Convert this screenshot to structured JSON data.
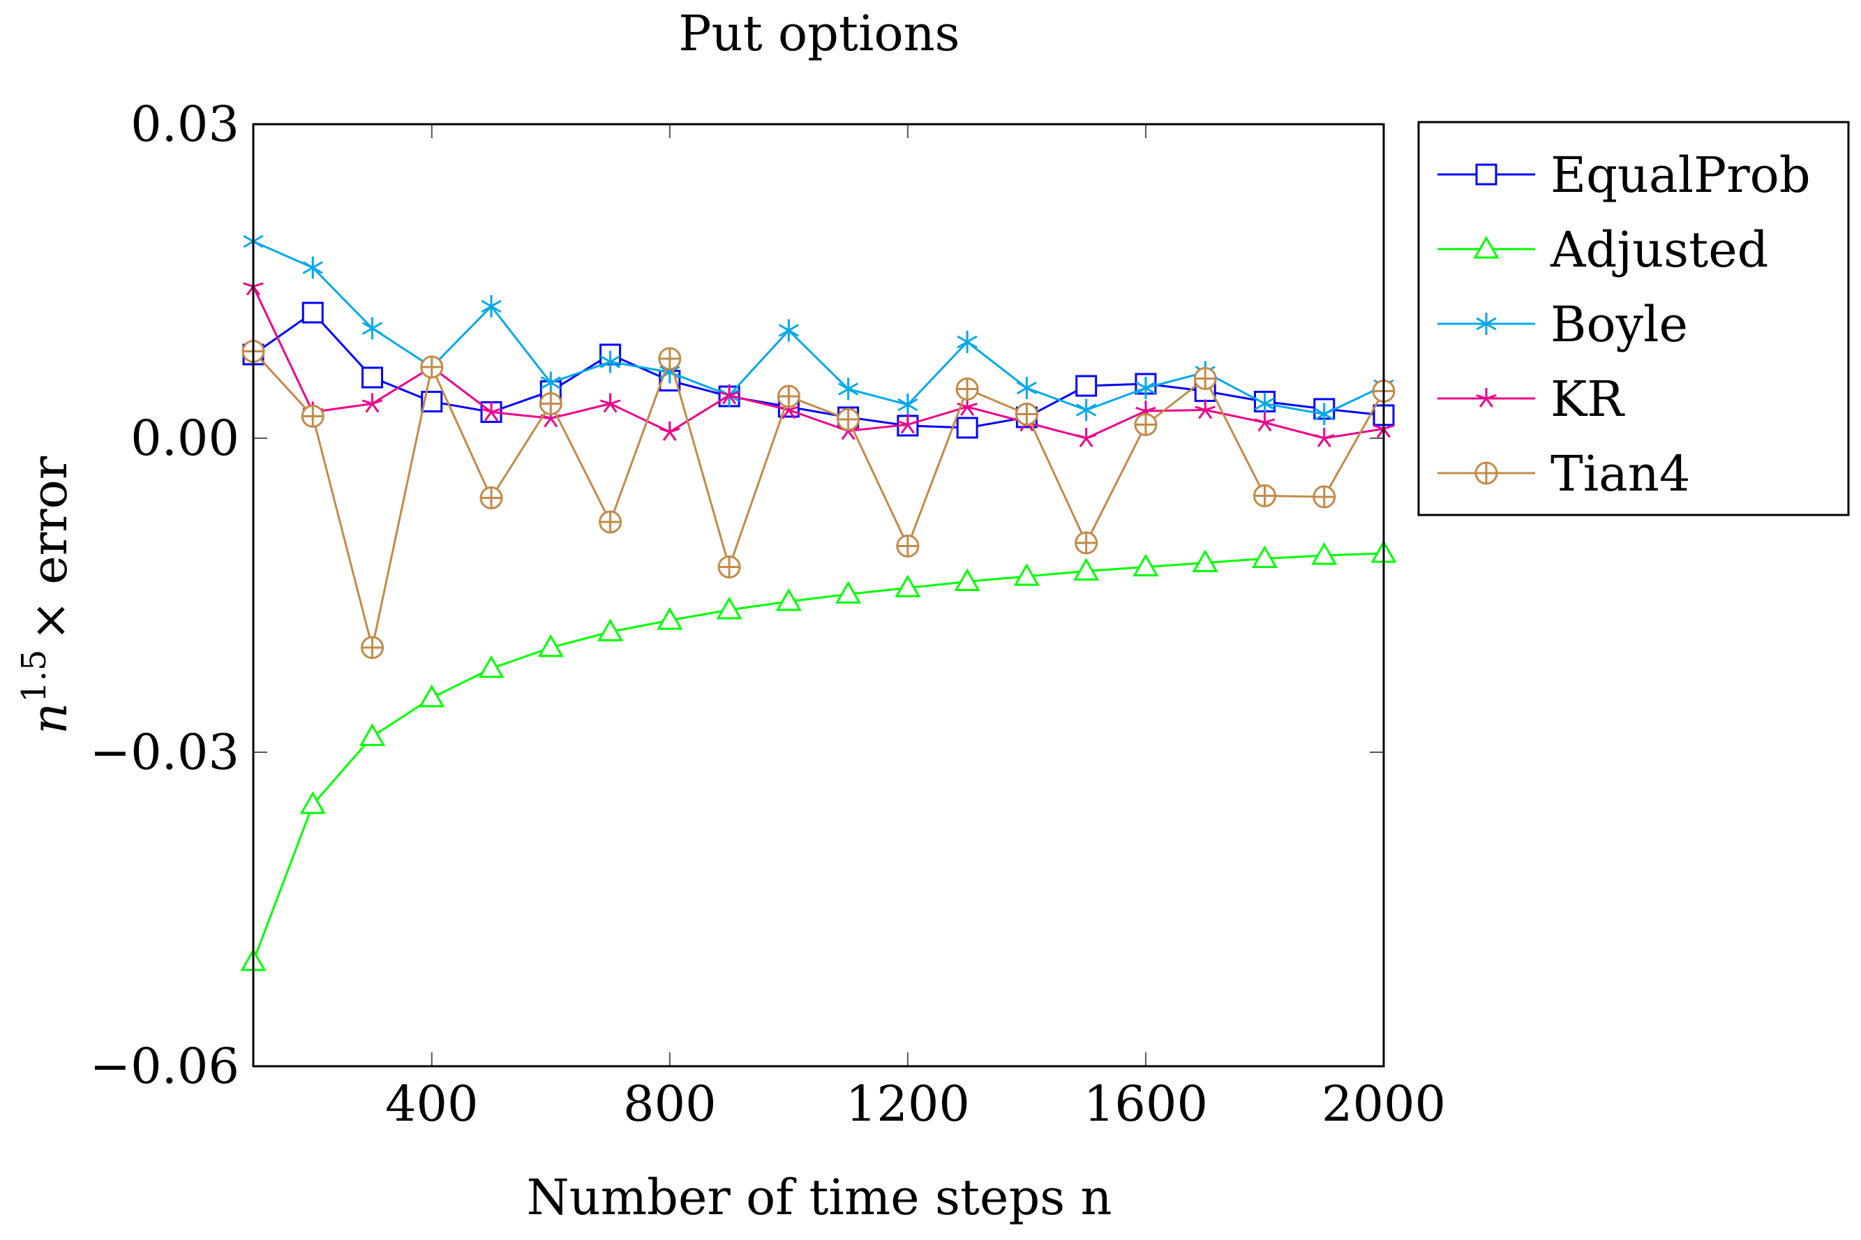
{
  "chart_data": {
    "type": "line",
    "title": "Put options",
    "xlabel": "Number of time steps n",
    "ylabel": {
      "base": "n",
      "exponent": "1.5",
      "suffix": "× error"
    },
    "xlim": [
      100,
      2000
    ],
    "ylim": [
      -0.06,
      0.03
    ],
    "xticks": [
      400,
      800,
      1200,
      1600,
      2000
    ],
    "xtick_labels": [
      "400",
      "800",
      "1200",
      "1600",
      "2000"
    ],
    "yticks": [
      0.03,
      0.0,
      -0.03,
      -0.06
    ],
    "ytick_labels": [
      "0.03",
      "0.00",
      "−0.03",
      "−0.06"
    ],
    "legend_position": "outside-right-top",
    "x": [
      100,
      200,
      300,
      400,
      500,
      600,
      700,
      800,
      900,
      1000,
      1100,
      1200,
      1300,
      1400,
      1500,
      1600,
      1700,
      1800,
      1900,
      2000
    ],
    "series": [
      {
        "name": "EqualProb",
        "color": "#0000ff",
        "marker": "square",
        "values": [
          0.008,
          0.012,
          0.0058,
          0.0035,
          0.0025,
          0.0045,
          0.008,
          0.0055,
          0.004,
          0.003,
          0.002,
          0.0012,
          0.001,
          0.002,
          0.005,
          0.0052,
          0.0045,
          0.0035,
          0.0028,
          0.0022
        ]
      },
      {
        "name": "Adjusted",
        "color": "#00ff00",
        "marker": "triangle",
        "values": [
          -0.05,
          -0.035,
          -0.0285,
          -0.0248,
          -0.022,
          -0.02,
          -0.0185,
          -0.0174,
          -0.0164,
          -0.0156,
          -0.0149,
          -0.0143,
          -0.0137,
          -0.0132,
          -0.0127,
          -0.0123,
          -0.0119,
          -0.0115,
          -0.0112,
          -0.011
        ]
      },
      {
        "name": "Boyle",
        "color": "#00a8ec",
        "marker": "asterisk",
        "values": [
          0.0188,
          0.0163,
          0.0105,
          0.0068,
          0.0126,
          0.0053,
          0.0073,
          0.0063,
          0.0041,
          0.0103,
          0.0047,
          0.0032,
          0.0092,
          0.0048,
          0.0027,
          0.0048,
          0.0063,
          0.0033,
          0.0023,
          0.005
        ]
      },
      {
        "name": "KR",
        "color": "#ec008c",
        "marker": "star",
        "values": [
          0.0145,
          0.0025,
          0.0033,
          0.0068,
          0.0025,
          0.0019,
          0.0033,
          0.0006,
          0.0041,
          0.0027,
          0.0007,
          0.0013,
          0.003,
          0.0015,
          0.0,
          0.0026,
          0.0027,
          0.0015,
          0.0,
          0.0009
        ]
      },
      {
        "name": "Tian4",
        "color": "#c28a48",
        "marker": "oplus",
        "values": [
          0.0083,
          0.0021,
          -0.02,
          0.0068,
          -0.0057,
          0.0033,
          -0.008,
          0.0076,
          -0.0123,
          0.004,
          0.0018,
          -0.0103,
          0.0047,
          0.0023,
          -0.01,
          0.0013,
          0.0057,
          -0.0055,
          -0.0056,
          0.0045
        ]
      }
    ]
  }
}
